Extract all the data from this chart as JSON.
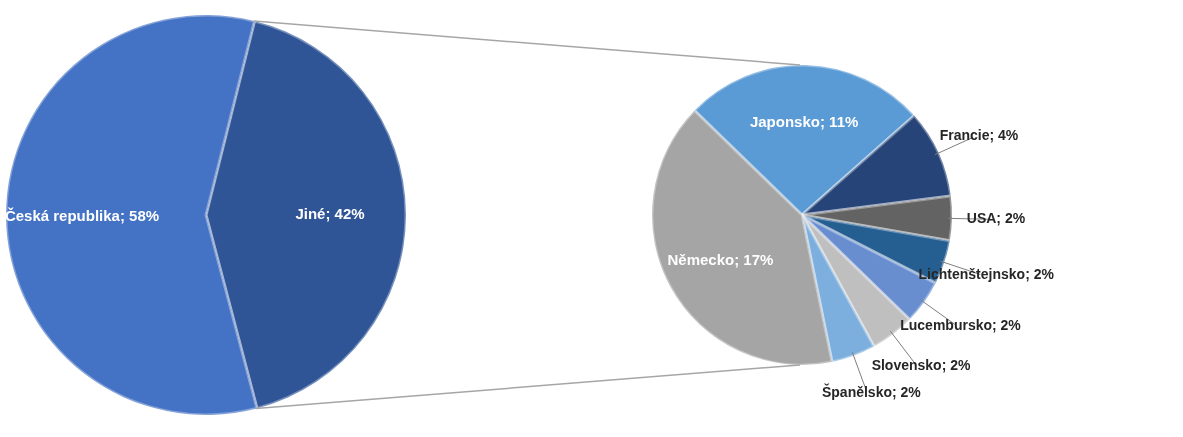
{
  "chart_data": [
    {
      "type": "pie",
      "categories": [
        "Jiné",
        "Česká republika"
      ],
      "values": [
        42,
        58
      ],
      "colors": [
        "#2f5597",
        "#4472c4"
      ],
      "value_labels": [
        "42%",
        "58%"
      ]
    },
    {
      "type": "pie",
      "categories": [
        "Japonsko",
        "Francie",
        "USA",
        "Lichtenštejnsko",
        "Lucembursko",
        "Slovensko",
        "Španělsko",
        "Německo"
      ],
      "values": [
        11,
        4,
        2,
        2,
        2,
        2,
        2,
        17
      ],
      "colors": [
        "#5b9bd5",
        "#264478",
        "#636363",
        "#255e91",
        "#698ed0",
        "#bfbfbf",
        "#7cafdd",
        "#a5a5a5"
      ],
      "value_labels": [
        "11%",
        "4%",
        "2%",
        "2%",
        "2%",
        "2%",
        "2%",
        "17%"
      ]
    }
  ]
}
